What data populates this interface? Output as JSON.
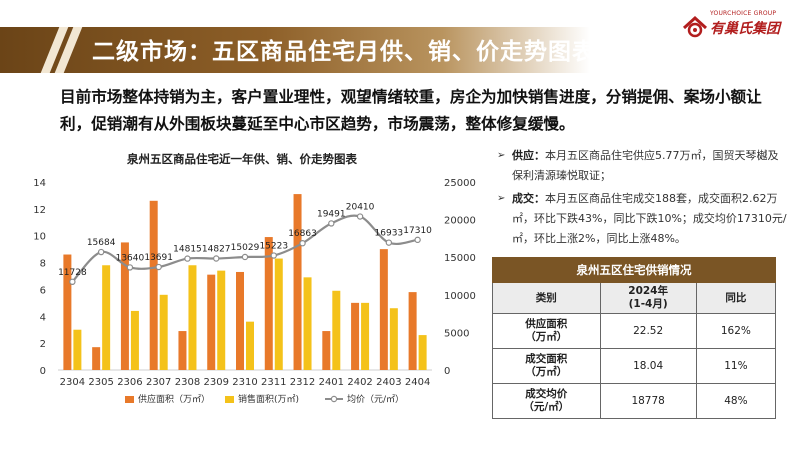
{
  "header": {
    "title": "二级市场：五区商品住宅月供、销、价走势图表"
  },
  "logo": {
    "text_en": "YOURCHOICE GROUP",
    "text_cn": "有巢氏集团"
  },
  "summary": "目前市场整体持销为主，客户置业理性，观望情绪较重，房企为加快销售进度，分销提佣、案场小额让利，促销潮有从外围板块蔓延至中心市区趋势，市场震荡，整体修复缓慢。",
  "notes": [
    {
      "label": "供应：",
      "text": "本月五区商品住宅供应5.77万㎡，国贸天琴樾及保利清源瑧悦取证；"
    },
    {
      "label": "成交：",
      "text": "本月五区商品住宅成交188套，成交面积2.62万㎡，环比下跌43%，同比下跌10%；成交均价17310元/㎡，环比上涨2%，同比上涨48%。"
    }
  ],
  "table": {
    "caption": "泉州五区住宅供销情况",
    "headers": [
      "类别",
      "2024年\n(1-4月)",
      "同比"
    ],
    "rows": [
      {
        "label": "供应面积\n（万㎡）",
        "value": "22.52",
        "yoy": "162%"
      },
      {
        "label": "成交面积\n（万㎡）",
        "value": "18.04",
        "yoy": "11%"
      },
      {
        "label": "成交均价\n（元/㎡）",
        "value": "18778",
        "yoy": "48%"
      }
    ]
  },
  "chart_data": {
    "type": "bar",
    "title": "泉州五区商品住宅近一年供、销、价走势图表",
    "categories": [
      "2304",
      "2305",
      "2306",
      "2307",
      "2308",
      "2309",
      "2310",
      "2311",
      "2312",
      "2401",
      "2402",
      "2403",
      "2404"
    ],
    "series": [
      {
        "name": "供应面积（万㎡）",
        "type": "bar",
        "axis": "left",
        "color": "#e8792a",
        "values": [
          8.6,
          1.7,
          9.5,
          12.6,
          2.9,
          7.1,
          7.3,
          9.9,
          13.1,
          2.9,
          5.0,
          9.0,
          5.8
        ]
      },
      {
        "name": "销售面积(万㎡)",
        "type": "bar",
        "axis": "left",
        "color": "#f4c21a",
        "values": [
          3.0,
          7.8,
          4.4,
          5.6,
          7.8,
          7.4,
          3.6,
          8.3,
          6.9,
          5.9,
          5.0,
          4.6,
          2.6
        ]
      },
      {
        "name": "均价（元/㎡）",
        "type": "line",
        "axis": "right",
        "color": "#8c8c8c",
        "values": [
          11728,
          15684,
          13640,
          13691,
          14815,
          14827,
          15029,
          15223,
          16863,
          19491,
          20410,
          16933,
          17310
        ]
      }
    ],
    "y_left": {
      "min": 0,
      "max": 14,
      "ticks": [
        0,
        2,
        4,
        6,
        8,
        10,
        12,
        14
      ]
    },
    "y_right": {
      "min": 0,
      "max": 25000,
      "ticks": [
        0,
        5000,
        10000,
        15000,
        20000,
        25000
      ]
    },
    "legend_position": "bottom",
    "grid": false
  }
}
